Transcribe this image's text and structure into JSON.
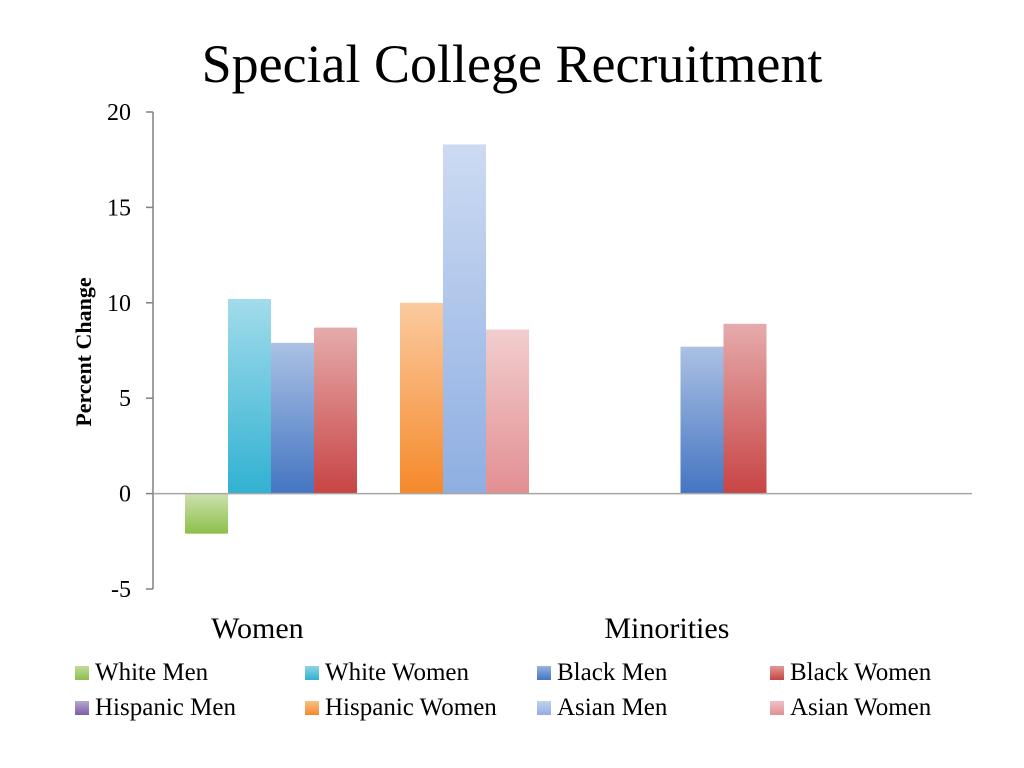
{
  "title": "Special College Recruitment",
  "chart_data": {
    "type": "bar",
    "title": "Special College Recruitment",
    "xlabel": "",
    "ylabel": "Percent Change",
    "ylim": [
      -5,
      20
    ],
    "yticks": [
      -5,
      0,
      5,
      10,
      15,
      20
    ],
    "categories": [
      "Women",
      "Minorities"
    ],
    "series": [
      {
        "name": "White Men",
        "values": [
          -2.1,
          null
        ],
        "color": "#8DBF4A"
      },
      {
        "name": "White Women",
        "values": [
          10.2,
          null
        ],
        "color": "#31B1D2"
      },
      {
        "name": "Black Men",
        "values": [
          7.9,
          7.7
        ],
        "color": "#4475C2"
      },
      {
        "name": "Black Women",
        "values": [
          8.7,
          8.9
        ],
        "color": "#C84444"
      },
      {
        "name": "Hispanic Men",
        "values": [
          null,
          null
        ],
        "color": "#7B5EA7"
      },
      {
        "name": "Hispanic Women",
        "values": [
          10.0,
          null
        ],
        "color": "#F5892A"
      },
      {
        "name": "Asian Men",
        "values": [
          18.3,
          null
        ],
        "color": "#8EAEE2"
      },
      {
        "name": "Asian Women",
        "values": [
          8.6,
          null
        ],
        "color": "#E28F92"
      }
    ],
    "grid": false,
    "legend_position": "bottom"
  }
}
